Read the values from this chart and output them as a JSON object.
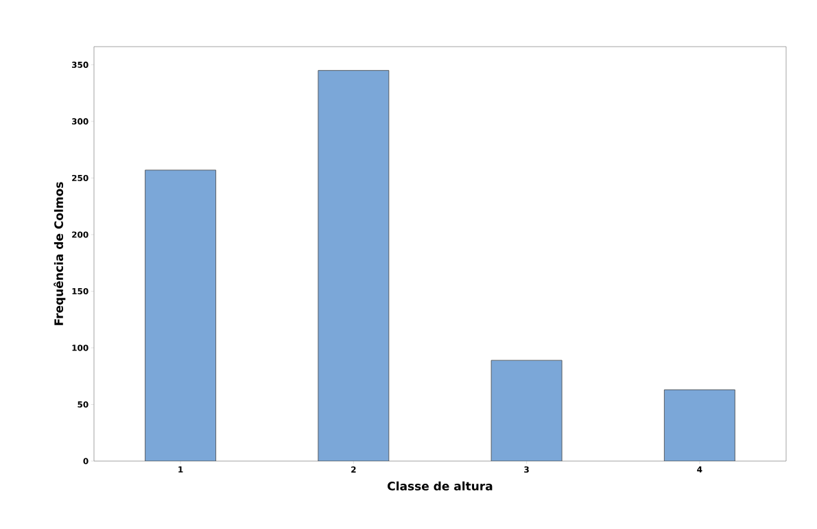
{
  "chart_data": {
    "type": "bar",
    "xlabel": "Classe de altura",
    "ylabel": "Frequência de Colmos",
    "categories": [
      "1",
      "2",
      "3",
      "4"
    ],
    "values": [
      257,
      345,
      89,
      63
    ],
    "color": "#7ba7d8",
    "ylim": [
      0,
      366
    ],
    "yticks": [
      0,
      50,
      100,
      150,
      200,
      250,
      300,
      350
    ],
    "grid": false
  }
}
